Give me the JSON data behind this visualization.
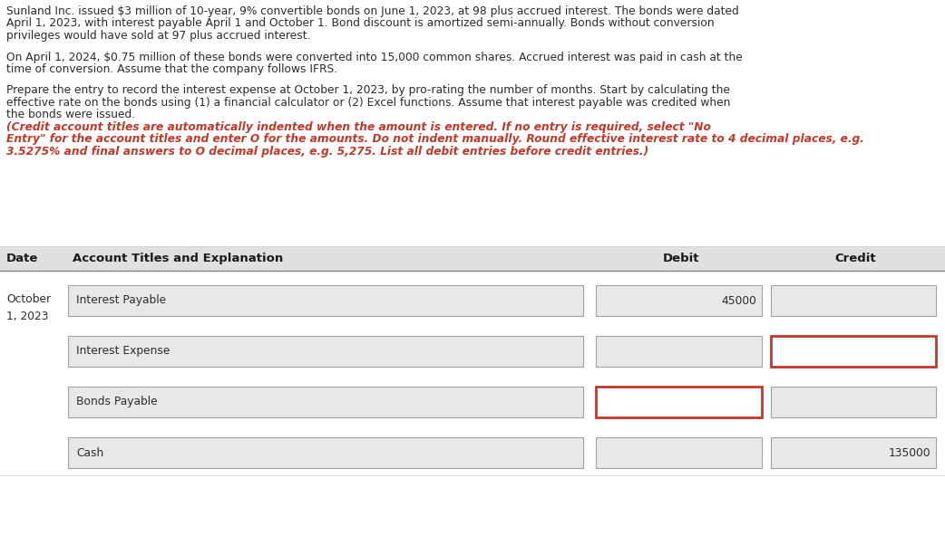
{
  "background_color": "#ffffff",
  "para1_lines": [
    "Sunland Inc. issued $3 million of 10-year, 9% convertible bonds on June 1, 2023, at 98 plus accrued interest. The bonds were dated",
    "April 1, 2023, with interest payable April 1 and October 1. Bond discount is amortized semi-annually. Bonds without conversion",
    "privileges would have sold at 97 plus accrued interest."
  ],
  "para2_lines": [
    "On April 1, 2024, $0.75 million of these bonds were converted into 15,000 common shares. Accrued interest was paid in cash at the",
    "time of conversion. Assume that the company follows IFRS."
  ],
  "para3_normal_lines": [
    "Prepare the entry to record the interest expense at October 1, 2023, by pro-rating the number of months. Start by calculating the",
    "effective rate on the bonds using (1) a financial calculator or (2) Excel functions. Assume that interest payable was credited when",
    "the bonds were issued. "
  ],
  "para3_italic_lines": [
    "(Credit account titles are automatically indented when the amount is entered. If no entry is required, select \"No",
    "Entry\" for the account titles and enter O for the amounts. Do not indent manually. Round effective interest rate to 4 decimal places, e.g.",
    "3.5275% and final answers to O decimal places, e.g. 5,275. List all debit entries before credit entries.)"
  ],
  "header_bg": "#e0e0e0",
  "header_text_color": "#1a1a1a",
  "cell_bg_gray": "#e8e8e8",
  "cell_bg_white": "#ffffff",
  "cell_border_normal": "#a0a0a0",
  "cell_border_red": "#c0392b",
  "text_color_normal": "#2c2c2c",
  "text_color_red": "#c0392b",
  "date_label": "October\n1, 2023",
  "col_headers": [
    "Date",
    "Account Titles and Explanation",
    "Debit",
    "Credit"
  ],
  "rows": [
    {
      "account": "Interest Payable",
      "debit": "45000",
      "credit": "",
      "debit_red": false,
      "credit_red": false
    },
    {
      "account": "Interest Expense",
      "debit": "",
      "credit": "",
      "debit_red": false,
      "credit_red": true
    },
    {
      "account": "Bonds Payable",
      "debit": "",
      "credit": "",
      "debit_red": true,
      "credit_red": false
    },
    {
      "account": "Cash",
      "debit": "",
      "credit": "135000",
      "debit_red": false,
      "credit_red": false
    }
  ],
  "font_size_text": 8.8,
  "font_size_header": 9.5,
  "font_size_cell": 8.8
}
